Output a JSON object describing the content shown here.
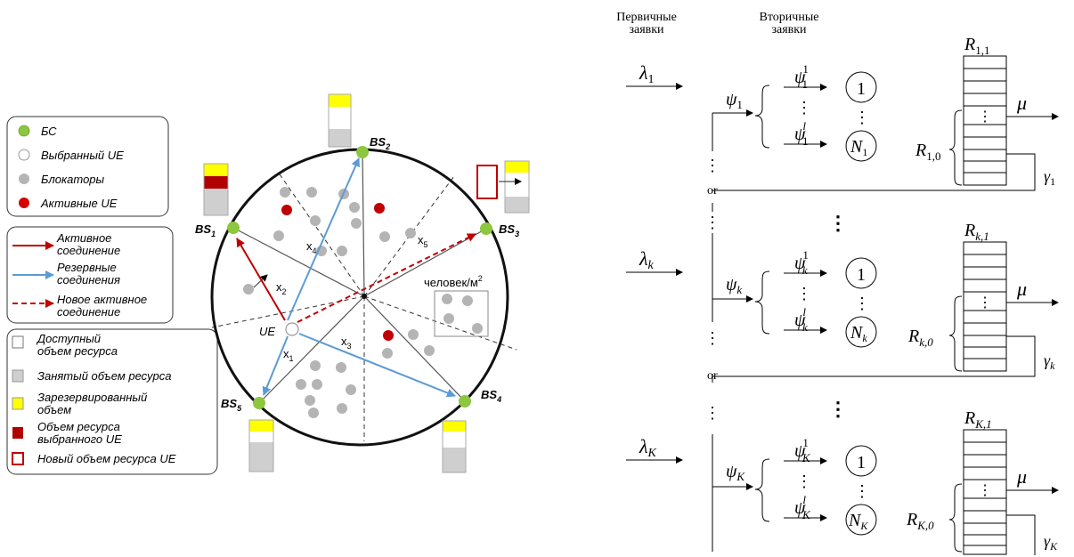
{
  "legend_nodes": {
    "bs": "БС",
    "selected_ue": "Выбранный UE",
    "blockers": "Блокаторы",
    "active_ue": "Активные UE"
  },
  "legend_links": {
    "active_1": "Активное",
    "active_2": "соединение",
    "backup_1": "Резервные",
    "backup_2": "соединения",
    "new_1": "Новое активное",
    "new_2": "соединение"
  },
  "legend_resources": {
    "available_1": "Доступный",
    "available_2": "объем ресурса",
    "occupied": "Занятый объем ресурса",
    "reserved_1": "Зарезервированный",
    "reserved_2": "объем",
    "selected_1": "Объем ресурса",
    "selected_2": "выбранного UE",
    "new": "Новый объем ресурса UE"
  },
  "cell": {
    "bs1": "BS",
    "bs1_sub": "1",
    "bs2": "BS",
    "bs2_sub": "2",
    "bs3": "BS",
    "bs3_sub": "3",
    "bs4": "BS",
    "bs4_sub": "4",
    "bs5": "BS",
    "bs5_sub": "5",
    "ue": "UE",
    "x1": "x",
    "x1_sub": "1",
    "x2": "x",
    "x2_sub": "2",
    "x3": "x",
    "x3_sub": "3",
    "x4": "x",
    "x4_sub": "4",
    "x5": "x",
    "x5_sub": "5",
    "density": "человек/м",
    "density_sup": "2"
  },
  "queue": {
    "primary_1": "Первичные",
    "primary_2": "заявки",
    "secondary_1": "Вторичные",
    "secondary_2": "заявки",
    "or": "or",
    "dots": "⋮",
    "lambda": "λ",
    "psi": "ψ",
    "R": "R",
    "mu": "μ",
    "gamma": "γ",
    "N": "N",
    "server_one": "1",
    "sub_1": "1",
    "sub_k": "k",
    "sub_K": "K",
    "sup_1": "1",
    "sup_l": "l",
    "R1_1": "1,1",
    "R1_0": "1,0",
    "Rk_1": "k,1",
    "Rk_0": "k,0",
    "RK_1": "K,1",
    "RK_0": "K,0"
  },
  "colors": {
    "bs_green": "#8dc63f",
    "blocker_gray": "#b4b4b4",
    "active_red": "#c00000",
    "backup_blue": "#5b9bd5",
    "reserved_yellow": "#ffff00",
    "selected_darkred": "#c00000"
  },
  "icons": [
    "arrow-icon"
  ]
}
